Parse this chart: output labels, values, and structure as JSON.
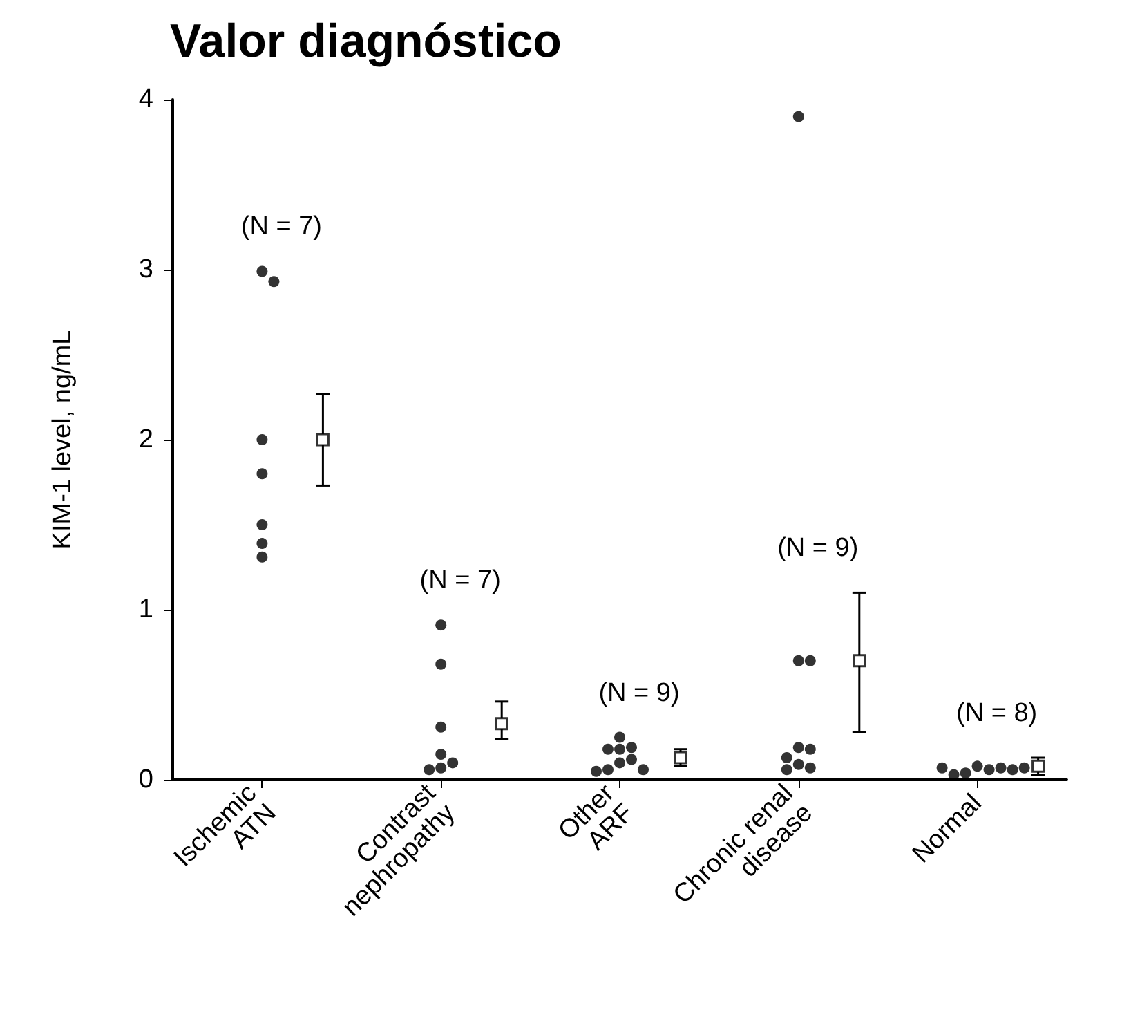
{
  "chart_data": {
    "type": "scatter",
    "title": "Valor diagnóstico",
    "ylabel": "KIM-1 level, ng/mL",
    "categories": [
      "Ischemic ATN",
      "Contrast nephropathy",
      "Other ARF",
      "Chronic renal disease",
      "Normal"
    ],
    "series": [
      {
        "color": "#000000",
        "marker": "circle",
        "x": [
          "Ischemic ATN",
          "Ischemic ATN",
          "Ischemic ATN",
          "Ischemic ATN",
          "Ischemic ATN",
          "Ischemic ATN",
          "Ischemic ATN",
          "Contrast nephropathy",
          "Contrast nephropathy",
          "Contrast nephropathy",
          "Contrast nephropathy",
          "Contrast nephropathy",
          "Contrast nephropathy",
          "Contrast nephropathy",
          "Other ARF",
          "Other ARF",
          "Other ARF",
          "Other ARF",
          "Other ARF",
          "Other ARF",
          "Other ARF",
          "Other ARF",
          "Other ARF",
          "Chronic renal disease",
          "Chronic renal disease",
          "Chronic renal disease",
          "Chronic renal disease",
          "Chronic renal disease",
          "Chronic renal disease",
          "Chronic renal disease",
          "Chronic renal disease",
          "Chronic renal disease",
          "Normal",
          "Normal",
          "Normal",
          "Normal",
          "Normal",
          "Normal",
          "Normal",
          "Normal"
        ],
        "values": [
          2.99,
          2.93,
          2.0,
          1.8,
          1.5,
          1.39,
          1.31,
          0.91,
          0.68,
          0.31,
          0.15,
          0.1,
          0.07,
          0.06,
          0.25,
          0.19,
          0.18,
          0.18,
          0.12,
          0.1,
          0.06,
          0.06,
          0.05,
          3.9,
          0.7,
          0.7,
          0.19,
          0.18,
          0.13,
          0.09,
          0.07,
          0.06,
          0.08,
          0.06,
          0.04,
          0.07,
          0.03,
          0.06,
          0.07,
          0.07
        ]
      },
      {
        "color": "#000000",
        "marker": "square",
        "x": [
          "Ischemic ATN",
          "Contrast nephropathy",
          "Other ARF",
          "Chronic renal disease",
          "Normal"
        ],
        "values": [
          2.0,
          0.33,
          0.13,
          0.7,
          0.08
        ],
        "errors": [
          [
            1.73,
            2.27
          ],
          [
            0.24,
            0.46
          ],
          [
            0.08,
            0.18
          ],
          [
            0.28,
            1.1
          ],
          [
            0.03,
            0.13
          ]
        ]
      }
    ],
    "annotations": [
      "(N = 7)",
      "(N = 7)",
      "(N = 9)",
      "(N = 9)",
      "(N = 8)"
    ],
    "ylim": [
      0,
      4
    ],
    "yticks": [
      0,
      1,
      2,
      3,
      4
    ],
    "grid": false
  }
}
